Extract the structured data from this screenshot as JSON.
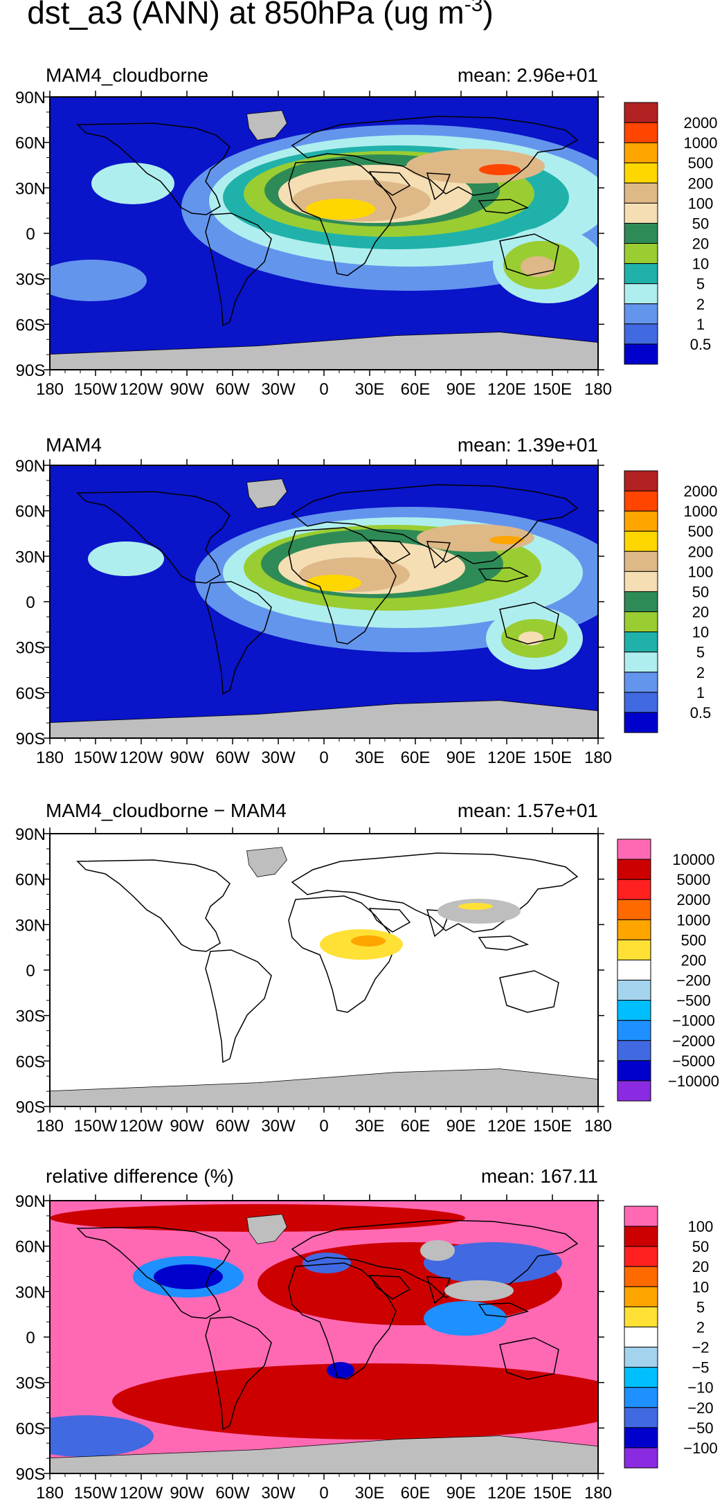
{
  "figure": {
    "title_main": "dst_a3 (ANN) at 850hPa (ug m",
    "title_exp": "-3",
    "title_close": ")"
  },
  "colors": {
    "ocean_blue": "#0a14c8",
    "land_gray": "#bebebe",
    "coast": "#000000",
    "frame": "#000000"
  },
  "panels": [
    {
      "title": "MAM4_cloudborne",
      "mean_text": "mean: 2.96e+01",
      "colorbar": {
        "labels": [
          "2000",
          "1000",
          "500",
          "200",
          "100",
          "50",
          "20",
          "10",
          "5",
          "2",
          "1",
          "0.5"
        ],
        "colors": [
          "#b22222",
          "#ff4500",
          "#ffa500",
          "#ffd700",
          "#deb887",
          "#f5deb3",
          "#2e8b57",
          "#9acd32",
          "#20b2aa",
          "#afeeee",
          "#6495ed",
          "#4169e1",
          "#0000cd"
        ]
      }
    },
    {
      "title": "MAM4",
      "mean_text": "mean: 1.39e+01",
      "colorbar": {
        "labels": [
          "2000",
          "1000",
          "500",
          "200",
          "100",
          "50",
          "20",
          "10",
          "5",
          "2",
          "1",
          "0.5"
        ],
        "colors": [
          "#b22222",
          "#ff4500",
          "#ffa500",
          "#ffd700",
          "#deb887",
          "#f5deb3",
          "#2e8b57",
          "#9acd32",
          "#20b2aa",
          "#afeeee",
          "#6495ed",
          "#4169e1",
          "#0000cd"
        ]
      }
    },
    {
      "title": "MAM4_cloudborne − MAM4",
      "mean_text": "mean: 1.57e+01",
      "colorbar": {
        "labels": [
          "10000",
          "5000",
          "2000",
          "1000",
          "500",
          "200",
          "−200",
          "−500",
          "−1000",
          "−2000",
          "−5000",
          "−10000"
        ],
        "colors": [
          "#ff69b4",
          "#cd0000",
          "#ff2020",
          "#ff6a00",
          "#ffa500",
          "#ffe135",
          "#ffffff",
          "#a4d3ee",
          "#00bfff",
          "#1e90ff",
          "#4169e1",
          "#0000cd",
          "#8a2be2"
        ]
      }
    },
    {
      "title": "relative difference (%)",
      "mean_text": "mean: 167.11",
      "colorbar": {
        "labels": [
          "100",
          "50",
          "20",
          "10",
          "5",
          "2",
          "−2",
          "−5",
          "−10",
          "−20",
          "−50",
          "−100"
        ],
        "colors": [
          "#ff69b4",
          "#cd0000",
          "#ff2020",
          "#ff6a00",
          "#ffa500",
          "#ffe135",
          "#ffffff",
          "#a4d3ee",
          "#00bfff",
          "#1e90ff",
          "#4169e1",
          "#0000cd",
          "#8a2be2"
        ]
      }
    }
  ],
  "chart_data": [
    {
      "type": "heatmap",
      "title": "MAM4_cloudborne",
      "annotation": "mean: 2.96e+01",
      "x_ticks": [
        "180",
        "150W",
        "120W",
        "90W",
        "60W",
        "30W",
        "0",
        "30E",
        "60E",
        "90E",
        "120E",
        "150E",
        "180"
      ],
      "y_ticks": [
        "90N",
        "60N",
        "30N",
        "0",
        "30S",
        "60S",
        "90S"
      ],
      "xlim": [
        -180,
        180
      ],
      "ylim": [
        -90,
        90
      ],
      "contour_levels": [
        0.5,
        1,
        2,
        5,
        10,
        20,
        50,
        100,
        200,
        500,
        1000,
        2000
      ],
      "missing_color": "#bebebe"
    },
    {
      "type": "heatmap",
      "title": "MAM4",
      "annotation": "mean: 1.39e+01",
      "x_ticks": [
        "180",
        "150W",
        "120W",
        "90W",
        "60W",
        "30W",
        "0",
        "30E",
        "60E",
        "90E",
        "120E",
        "150E",
        "180"
      ],
      "y_ticks": [
        "90N",
        "60N",
        "30N",
        "0",
        "30S",
        "60S",
        "90S"
      ],
      "xlim": [
        -180,
        180
      ],
      "ylim": [
        -90,
        90
      ],
      "contour_levels": [
        0.5,
        1,
        2,
        5,
        10,
        20,
        50,
        100,
        200,
        500,
        1000,
        2000
      ],
      "missing_color": "#bebebe"
    },
    {
      "type": "heatmap",
      "title": "MAM4_cloudborne − MAM4",
      "annotation": "mean: 1.57e+01",
      "x_ticks": [
        "180",
        "150W",
        "120W",
        "90W",
        "60W",
        "30W",
        "0",
        "30E",
        "60E",
        "90E",
        "120E",
        "150E",
        "180"
      ],
      "y_ticks": [
        "90N",
        "60N",
        "30N",
        "0",
        "30S",
        "60S",
        "90S"
      ],
      "xlim": [
        -180,
        180
      ],
      "ylim": [
        -90,
        90
      ],
      "contour_levels": [
        -10000,
        -5000,
        -2000,
        -1000,
        -500,
        -200,
        200,
        500,
        1000,
        2000,
        5000,
        10000
      ],
      "missing_color": "#bebebe"
    },
    {
      "type": "heatmap",
      "title": "relative difference (%)",
      "annotation": "mean: 167.11",
      "x_ticks": [
        "180",
        "150W",
        "120W",
        "90W",
        "60W",
        "30W",
        "0",
        "30E",
        "60E",
        "90E",
        "120E",
        "150E",
        "180"
      ],
      "y_ticks": [
        "90N",
        "60N",
        "30N",
        "0",
        "30S",
        "60S",
        "90S"
      ],
      "xlim": [
        -180,
        180
      ],
      "ylim": [
        -90,
        90
      ],
      "contour_levels": [
        -100,
        -50,
        -20,
        -10,
        -5,
        -2,
        2,
        5,
        10,
        20,
        50,
        100
      ],
      "missing_color": "#bebebe"
    }
  ]
}
